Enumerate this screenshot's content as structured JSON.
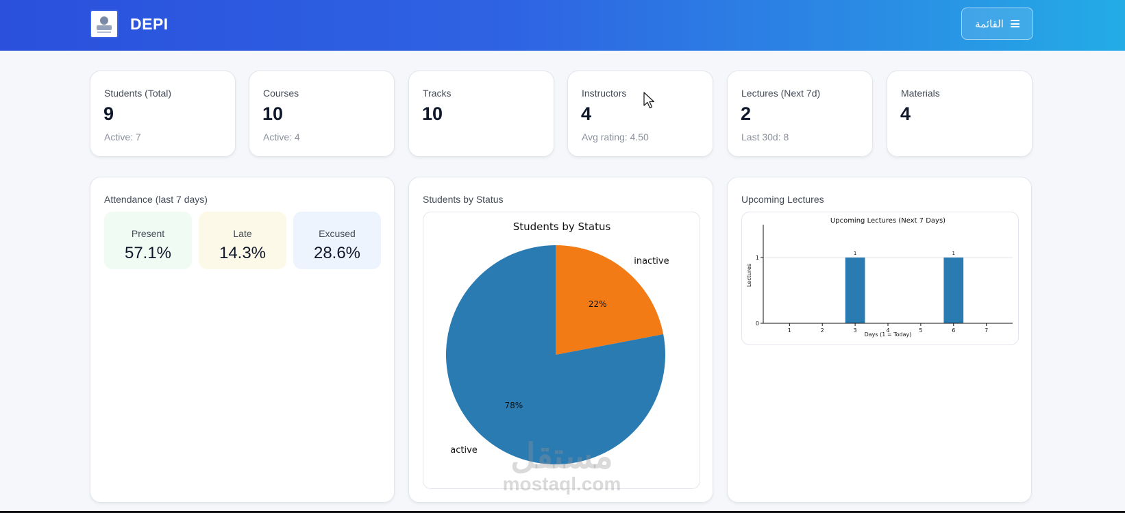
{
  "header": {
    "brand": "DEPI",
    "menu_label": "القائمة"
  },
  "stats": [
    {
      "label": "Students (Total)",
      "value": "9",
      "sub": "Active: 7"
    },
    {
      "label": "Courses",
      "value": "10",
      "sub": "Active: 4"
    },
    {
      "label": "Tracks",
      "value": "10",
      "sub": ""
    },
    {
      "label": "Instructors",
      "value": "4",
      "sub": "Avg rating: 4.50"
    },
    {
      "label": "Lectures (Next 7d)",
      "value": "2",
      "sub": "Last 30d: 8"
    },
    {
      "label": "Materials",
      "value": "4",
      "sub": ""
    }
  ],
  "attendance": {
    "title": "Attendance (last 7 days)",
    "items": [
      {
        "label": "Present",
        "value": "57.1%",
        "color": "#f0fbf4"
      },
      {
        "label": "Late",
        "value": "14.3%",
        "color": "#fdf9e8"
      },
      {
        "label": "Excused",
        "value": "28.6%",
        "color": "#eef4fe"
      }
    ]
  },
  "status_panel": {
    "title": "Students by Status"
  },
  "lectures_panel": {
    "title": "Upcoming Lectures"
  },
  "watermark": {
    "arabic": "مستقل",
    "latin": "mostaql.com"
  },
  "chart_data": [
    {
      "type": "pie",
      "title": "Students by Status",
      "labels": [
        "inactive",
        "active"
      ],
      "values": [
        22,
        78
      ],
      "percent_labels": [
        "22%",
        "78%"
      ],
      "colors": [
        "#f27b16",
        "#2a7bb2"
      ]
    },
    {
      "type": "bar",
      "title": "Upcoming Lectures (Next 7 Days)",
      "xlabel": "Days (1 = Today)",
      "ylabel": "Lectures",
      "categories": [
        "1",
        "2",
        "3",
        "4",
        "5",
        "6",
        "7"
      ],
      "values": [
        0,
        0,
        1,
        0,
        0,
        1,
        0
      ],
      "y_ticks": [
        "0",
        "1"
      ],
      "ylim": [
        0,
        1.5
      ],
      "color": "#2a7bb2",
      "grid": true
    }
  ]
}
